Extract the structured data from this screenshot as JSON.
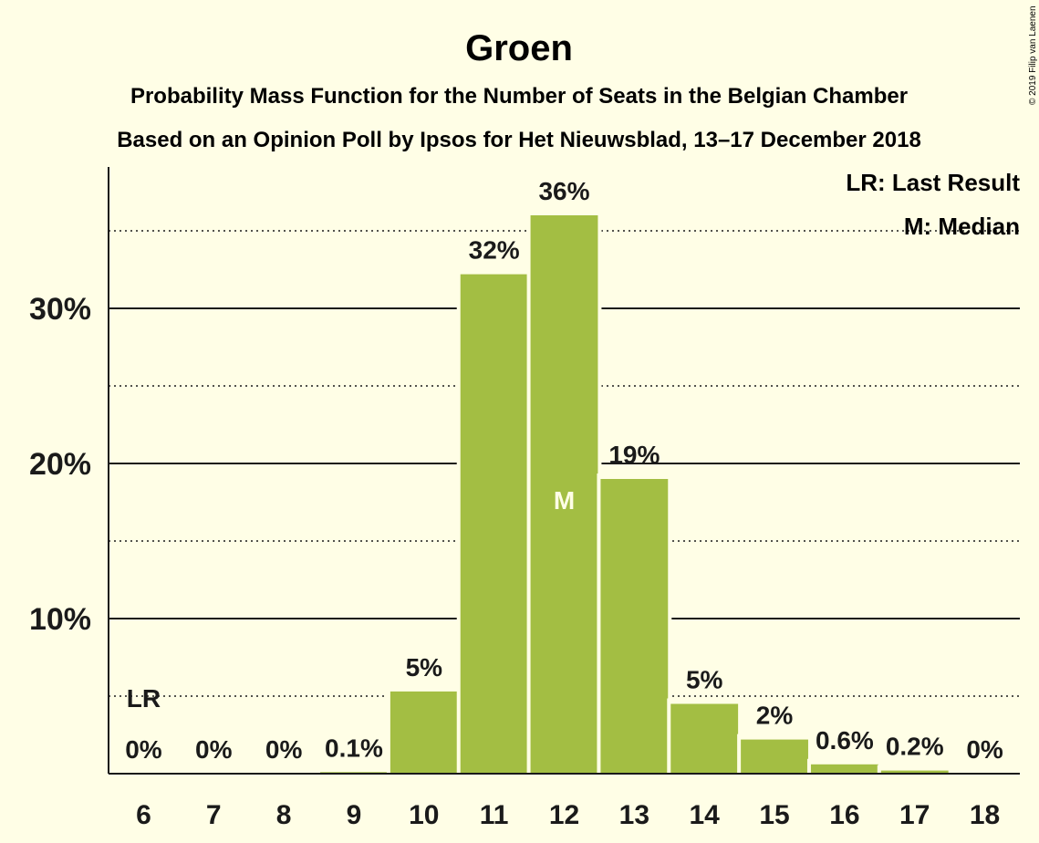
{
  "chart_data": {
    "type": "bar",
    "title": "Groen",
    "subtitle_lines": [
      "Probability Mass Function for the Number of Seats in the Belgian Chamber",
      "Based on an Opinion Poll by Ipsos for Het Nieuwsblad, 13–17 December 2018"
    ],
    "categories": [
      "6",
      "7",
      "8",
      "9",
      "10",
      "11",
      "12",
      "13",
      "14",
      "15",
      "16",
      "17",
      "18"
    ],
    "values": [
      0,
      0,
      0,
      0.1,
      5.3,
      32.2,
      36.0,
      19.0,
      4.5,
      2.2,
      0.6,
      0.2,
      0
    ],
    "data_labels": [
      "0%",
      "0%",
      "0%",
      "0.1%",
      "5%",
      "32%",
      "36%",
      "19%",
      "5%",
      "2%",
      "0.6%",
      "0.2%",
      "0%"
    ],
    "ylim": [
      0,
      39
    ],
    "yticks": [
      {
        "value": 10,
        "label": "10%"
      },
      {
        "value": 20,
        "label": "20%"
      },
      {
        "value": 30,
        "label": "30%"
      }
    ],
    "dotted_gridlines": [
      5,
      15,
      25,
      35
    ],
    "last_result": {
      "category": "6",
      "label": "LR"
    },
    "median": {
      "category": "12",
      "label": "M"
    },
    "legend": {
      "position": "top-right",
      "items": [
        "LR: Last Result",
        "M: Median"
      ]
    },
    "xlabel": "",
    "ylabel": "",
    "copyright": "© 2019 Filip van Laenen",
    "colors": {
      "background": "#FFFEE6",
      "bar": "#A3BE43",
      "text": "#1a1a1a",
      "median_label": "#FFFEE6"
    }
  }
}
